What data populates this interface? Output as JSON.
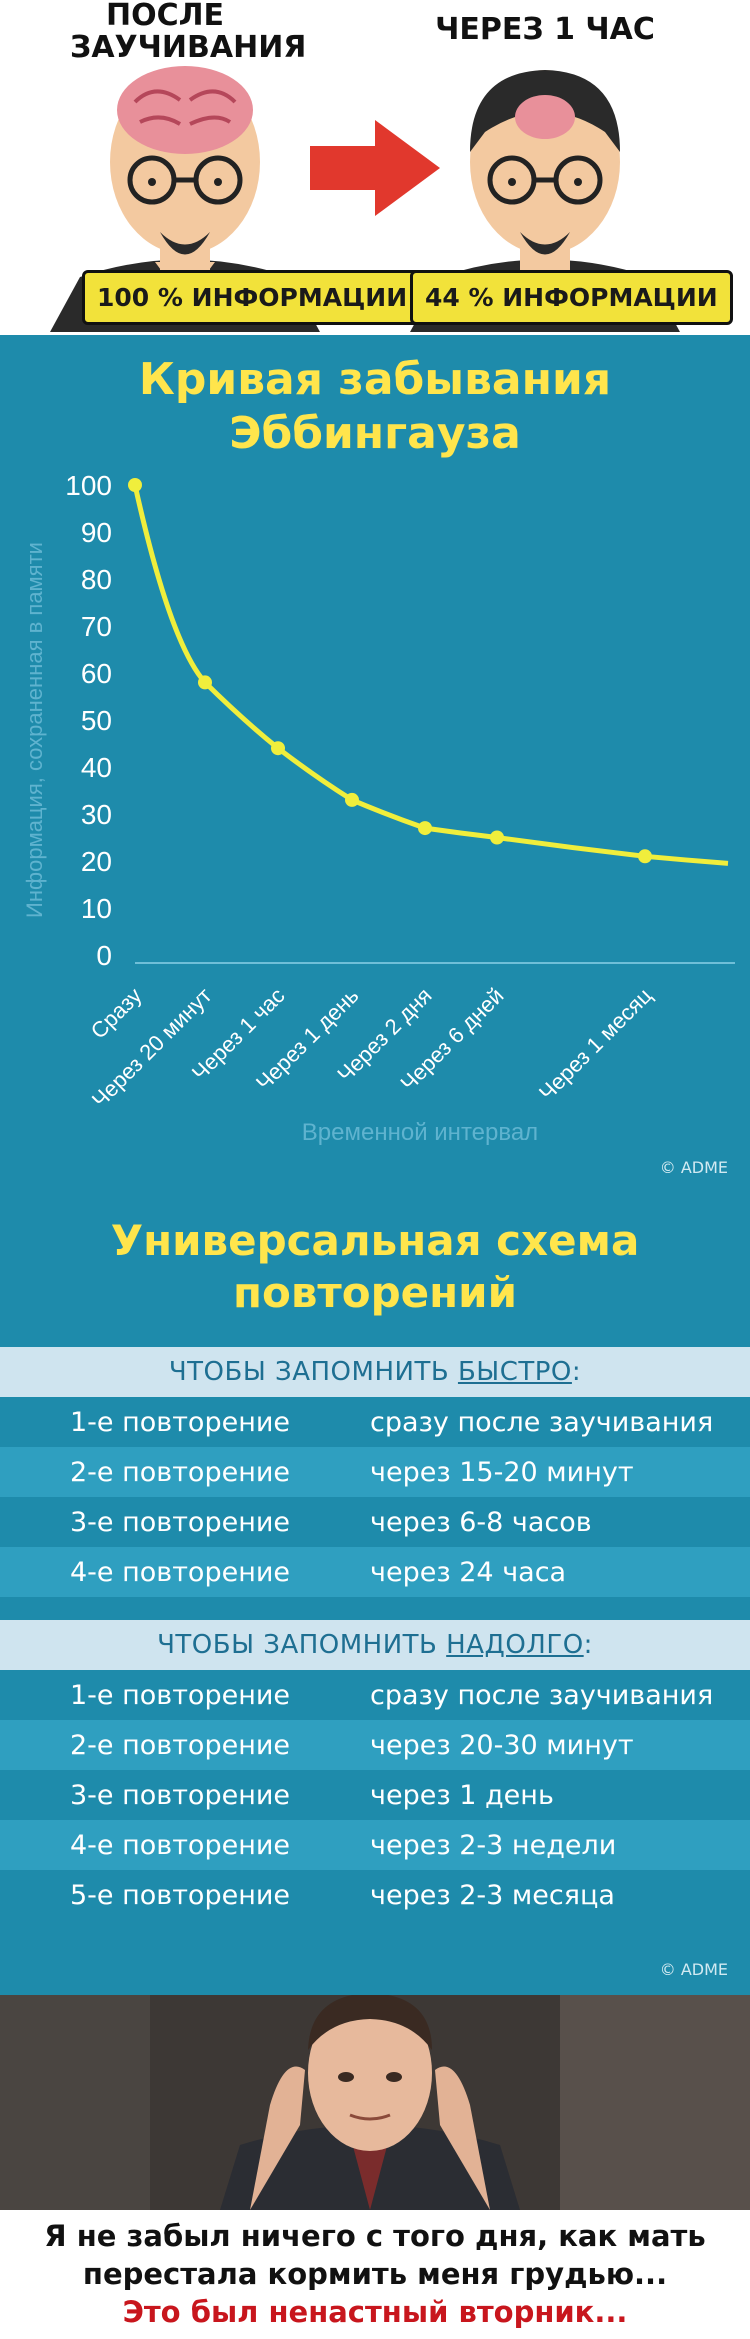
{
  "section1": {
    "left_title": "ПОСЛЕ\nЗАУЧИВАНИЯ",
    "left_title_1": "ПОСЛЕ",
    "left_title_2": "ЗАУЧИВАНИЯ",
    "right_title": "ЧЕРЕЗ 1 ЧАС",
    "left_badge": "100 % ИНФОРМАЦИИ",
    "right_badge": "44 % ИНФОРМАЦИИ",
    "colors": {
      "badge": "#f2e23a",
      "arrow": "#e1382d",
      "brain": "#e8909a",
      "hair": "#2a2a2a",
      "skin": "#f3c9a0"
    }
  },
  "chart_data": {
    "type": "line",
    "title_line1": "Кривая забывания",
    "title_line2": "Эббингауза",
    "ylabel": "Информация, сохраненная в памяти",
    "xlabel": "Временной интервал",
    "yticks": [
      "100",
      "90",
      "80",
      "70",
      "60",
      "50",
      "40",
      "30",
      "20",
      "10",
      "0"
    ],
    "ylim": [
      0,
      100
    ],
    "categories": [
      "Сразу",
      "Через 20 минут",
      "Через 1 час",
      "Через 1 день",
      "Через 2 дня",
      "Через 6 дней",
      "Через 1 месяц"
    ],
    "points": [
      {
        "label": "Сразу",
        "value": 100
      },
      {
        "label": "Через 20 минут",
        "value": 58
      },
      {
        "label": "Через 1 час",
        "value": 44
      },
      {
        "label": "Через 1 день",
        "value": 33
      },
      {
        "label": "Через 2 дня",
        "value": 27
      },
      {
        "label": "Через 6 дней",
        "value": 25
      },
      {
        "label": "Через 1 месяц",
        "value": 21
      }
    ],
    "tail_value": 19.5,
    "grid": false,
    "colors": {
      "line": "#f0ee3c",
      "background": "#1e8bab",
      "axis_text": "#ffffff",
      "label_text": "#5fb3cf",
      "title": "#ffe54c"
    },
    "copyright": "© ADME"
  },
  "schedule": {
    "title_line1": "Универсальная схема",
    "title_line2": "повторений",
    "quick": {
      "header_prefix": "ЧТОБЫ ЗАПОМНИТЬ ",
      "header_underlined": "БЫСТРО",
      "header_suffix": ":",
      "rows": [
        {
          "label": "1-е повторение",
          "time": "сразу после заучивания"
        },
        {
          "label": "2-е повторение",
          "time": "через 15-20 минут"
        },
        {
          "label": "3-е повторение",
          "time": "через 6-8 часов"
        },
        {
          "label": "4-е повторение",
          "time": "через 24 часа"
        }
      ]
    },
    "long": {
      "header_prefix": "ЧТОБЫ ЗАПОМНИТЬ ",
      "header_underlined": "НАДОЛГО",
      "header_suffix": ":",
      "rows": [
        {
          "label": "1-е повторение",
          "time": "сразу после заучивания"
        },
        {
          "label": "2-е повторение",
          "time": "через 20-30 минут"
        },
        {
          "label": "3-е повторение",
          "time": "через 1 день"
        },
        {
          "label": "4-е повторение",
          "time": "через 2-3 недели"
        },
        {
          "label": "5-е повторение",
          "time": "через 2-3 месяца"
        }
      ]
    },
    "copyright": "© ADME"
  },
  "meme": {
    "line1": "Я не забыл ничего с того дня, как мать",
    "line2": "перестала кормить меня грудью...",
    "line3": "Это был ненастный вторник..."
  }
}
